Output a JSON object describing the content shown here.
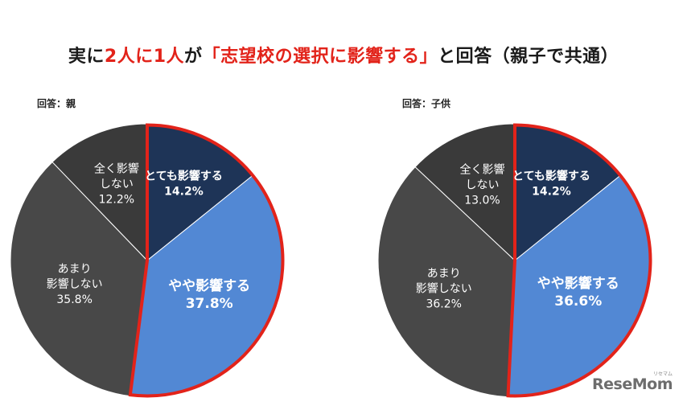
{
  "title": {
    "part1": "実に",
    "highlight1": "2人に1人",
    "part2": "が",
    "highlight2": "「志望校の選択に影響する」",
    "part3": "と回答（親子で共通）"
  },
  "watermark": {
    "text": "ReseMom",
    "small": "リセマム"
  },
  "colors": {
    "navy": "#1e3457",
    "blue": "#5288d4",
    "darkgray": "#484848",
    "gray": "#3a3a3a",
    "outline": "#e2231a",
    "title_highlight": "#e2231a"
  },
  "chart_data": [
    {
      "type": "pie",
      "caption": "回答：親",
      "slices": [
        {
          "label": [
            "とても影響する"
          ],
          "value": 14.2,
          "value_label": "14.2%",
          "color": "#1e3457",
          "text_color": "#ffffff",
          "bold": true
        },
        {
          "label": [
            "やや影響する"
          ],
          "value": 37.8,
          "value_label": "37.8%",
          "color": "#5288d4",
          "text_color": "#ffffff",
          "bold": true
        },
        {
          "label": [
            "あまり",
            "影響しない"
          ],
          "value": 35.8,
          "value_label": "35.8%",
          "color": "#484848",
          "text_color": "#ffffff",
          "bold": false
        },
        {
          "label": [
            "全く影響",
            "しない"
          ],
          "value": 12.2,
          "value_label": "12.2%",
          "color": "#3a3a3a",
          "text_color": "#ffffff",
          "bold": false
        }
      ],
      "highlight_slices": [
        0,
        1
      ]
    },
    {
      "type": "pie",
      "caption": "回答：子供",
      "slices": [
        {
          "label": [
            "とても影響する"
          ],
          "value": 14.2,
          "value_label": "14.2%",
          "color": "#1e3457",
          "text_color": "#ffffff",
          "bold": true
        },
        {
          "label": [
            "やや影響する"
          ],
          "value": 36.6,
          "value_label": "36.6%",
          "color": "#5288d4",
          "text_color": "#ffffff",
          "bold": true
        },
        {
          "label": [
            "あまり",
            "影響しない"
          ],
          "value": 36.2,
          "value_label": "36.2%",
          "color": "#484848",
          "text_color": "#ffffff",
          "bold": false
        },
        {
          "label": [
            "全く影響",
            "しない"
          ],
          "value": 13.0,
          "value_label": "13.0%",
          "color": "#3a3a3a",
          "text_color": "#ffffff",
          "bold": false
        }
      ],
      "highlight_slices": [
        0,
        1
      ]
    }
  ]
}
